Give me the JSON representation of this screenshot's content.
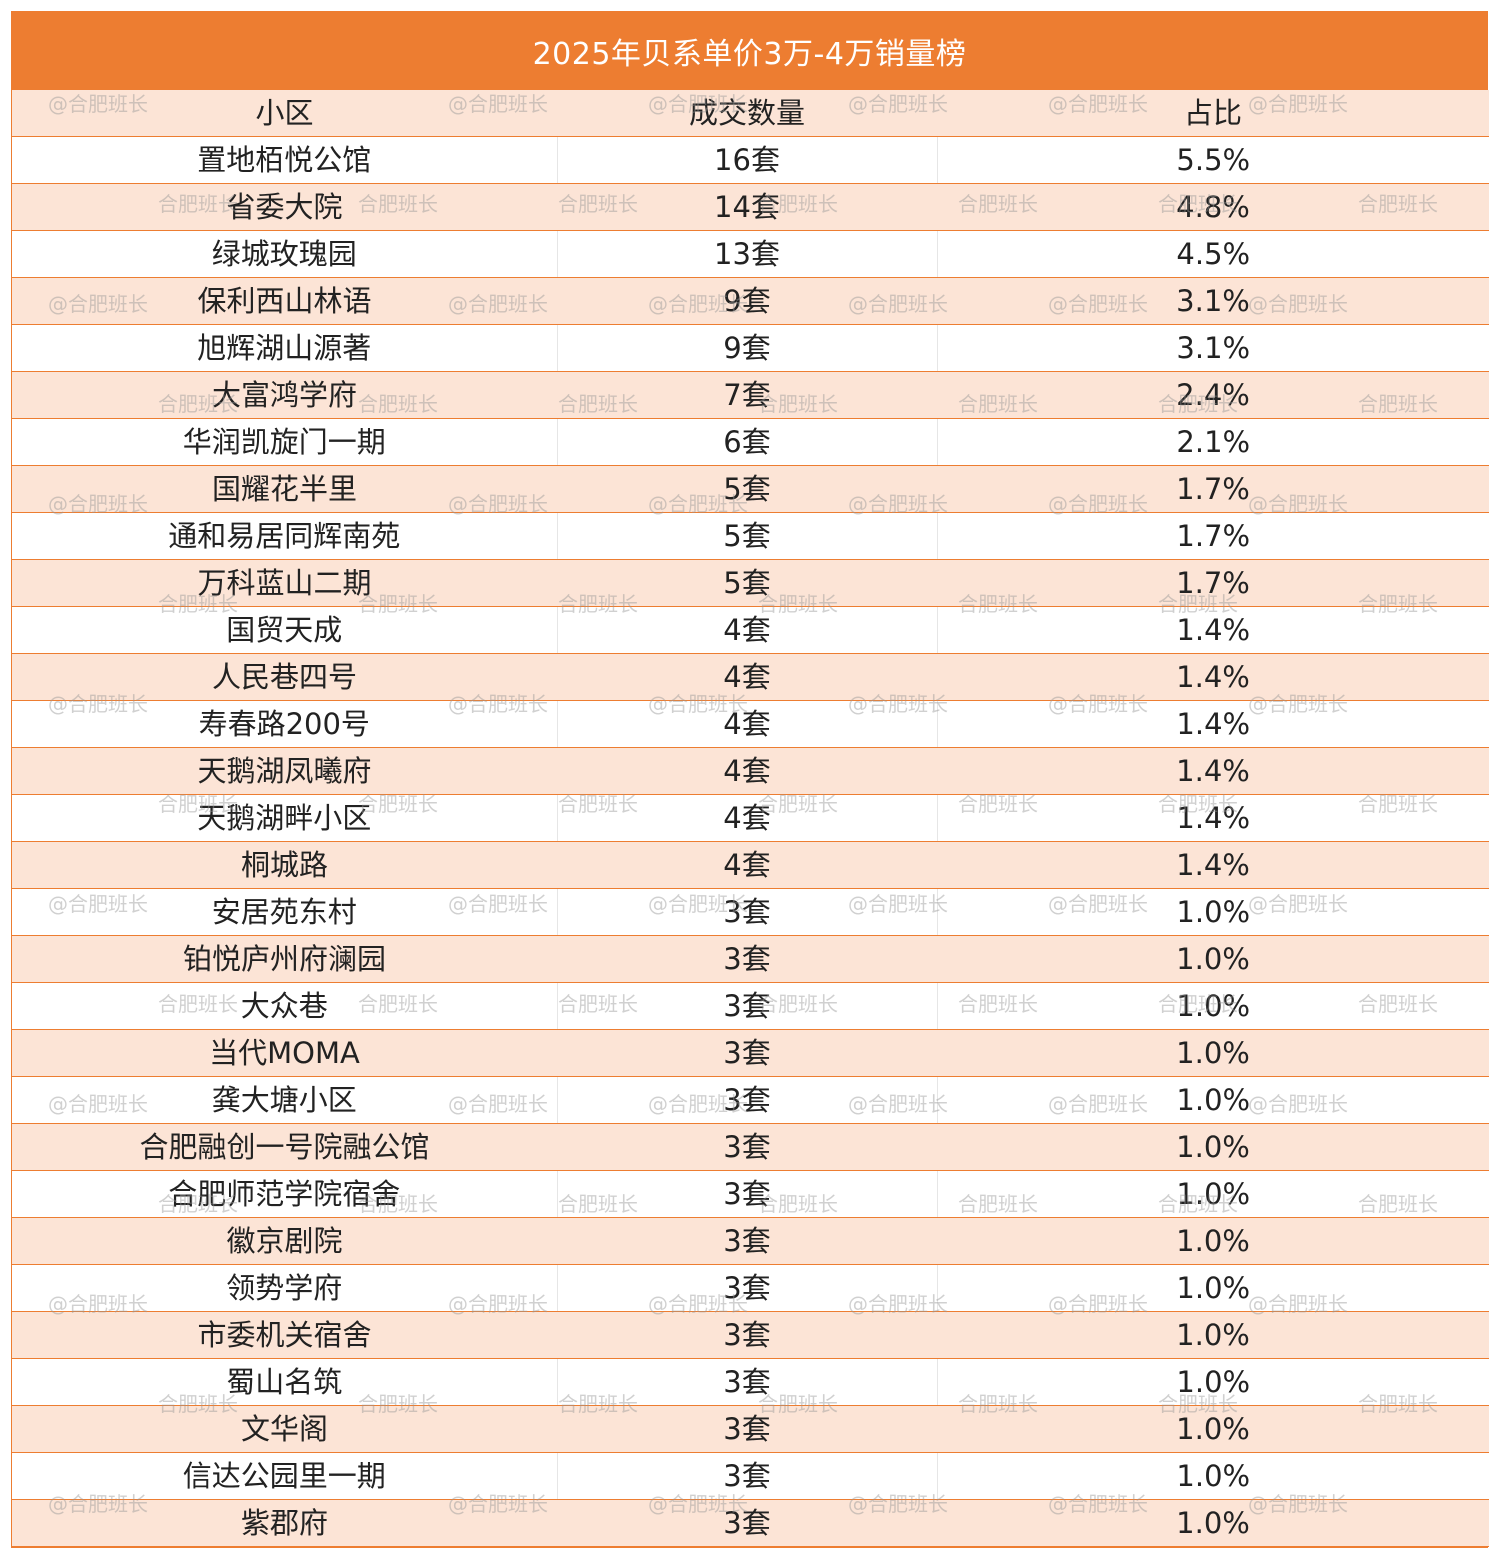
{
  "title": "2025年贝系单价3万-4万销量榜",
  "columns": [
    "小区",
    "成交数量",
    "占比"
  ],
  "rows": [
    [
      "置地栢悦公馆",
      "16套",
      "5.5%"
    ],
    [
      "省委大院",
      "14套",
      "4.8%"
    ],
    [
      "绿城玫瑰园",
      "13套",
      "4.5%"
    ],
    [
      "保利西山林语",
      "9套",
      "3.1%"
    ],
    [
      "旭辉湖山源著",
      "9套",
      "3.1%"
    ],
    [
      "大富鸿学府",
      "7套",
      "2.4%"
    ],
    [
      "华润凯旋门一期",
      "6套",
      "2.1%"
    ],
    [
      "国耀花半里",
      "5套",
      "1.7%"
    ],
    [
      "通和易居同辉南苑",
      "5套",
      "1.7%"
    ],
    [
      "万科蓝山二期",
      "5套",
      "1.7%"
    ],
    [
      "国贸天成",
      "4套",
      "1.4%"
    ],
    [
      "人民巷四号",
      "4套",
      "1.4%"
    ],
    [
      "寿春路200号",
      "4套",
      "1.4%"
    ],
    [
      "天鹅湖凤曦府",
      "4套",
      "1.4%"
    ],
    [
      "天鹅湖畔小区",
      "4套",
      "1.4%"
    ],
    [
      "桐城路",
      "4套",
      "1.4%"
    ],
    [
      "安居苑东村",
      "3套",
      "1.0%"
    ],
    [
      "铂悦庐州府澜园",
      "3套",
      "1.0%"
    ],
    [
      "大众巷",
      "3套",
      "1.0%"
    ],
    [
      "当代MOMA",
      "3套",
      "1.0%"
    ],
    [
      "龚大塘小区",
      "3套",
      "1.0%"
    ],
    [
      "合肥融创一号院融公馆",
      "3套",
      "1.0%"
    ],
    [
      "合肥师范学院宿舍",
      "3套",
      "1.0%"
    ],
    [
      "徽京剧院",
      "3套",
      "1.0%"
    ],
    [
      "领势学府",
      "3套",
      "1.0%"
    ],
    [
      "市委机关宿舍",
      "3套",
      "1.0%"
    ],
    [
      "蜀山名筑",
      "3套",
      "1.0%"
    ],
    [
      "文华阁",
      "3套",
      "1.0%"
    ],
    [
      "信达公园里一期",
      "3套",
      "1.0%"
    ],
    [
      "紫郡府",
      "3套",
      "1.0%"
    ]
  ],
  "watermarks": {
    "text_at": "@合肥班长",
    "text_plain": "合肥班长"
  },
  "colors": {
    "accent": "#ED7D31",
    "band": "#FCE4D6"
  }
}
